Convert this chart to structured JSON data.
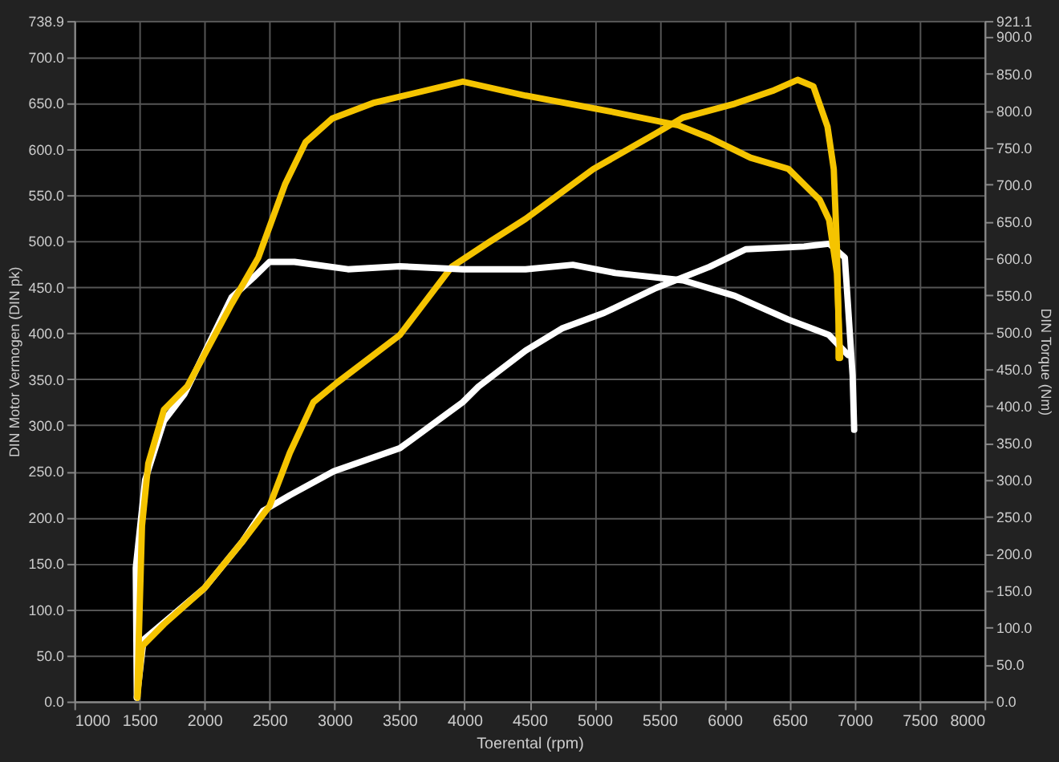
{
  "chart_data": {
    "type": "line",
    "xlabel": "Toerental (rpm)",
    "ylabel": "DIN Motor Vermogen (DIN pk)",
    "y2label": "DIN Torque (Nm)",
    "xlim": [
      1000,
      8000
    ],
    "xticks": [
      1000,
      1500,
      2000,
      2500,
      3000,
      3500,
      4000,
      4500,
      5000,
      5500,
      6000,
      6500,
      7000,
      7500,
      8000
    ],
    "ylim": [
      0,
      738.9
    ],
    "yticks": [
      {
        "value": 0,
        "label": "0.0"
      },
      {
        "value": 50,
        "label": "50.0"
      },
      {
        "value": 100,
        "label": "100.0"
      },
      {
        "value": 150,
        "label": "150.0"
      },
      {
        "value": 200,
        "label": "200.0"
      },
      {
        "value": 250,
        "label": "250.0"
      },
      {
        "value": 300,
        "label": "300.0"
      },
      {
        "value": 350,
        "label": "350.0"
      },
      {
        "value": 400,
        "label": "400.0"
      },
      {
        "value": 450,
        "label": "450.0"
      },
      {
        "value": 500,
        "label": "500.0"
      },
      {
        "value": 550,
        "label": "550.0"
      },
      {
        "value": 600,
        "label": "600.0"
      },
      {
        "value": 650,
        "label": "650.0"
      },
      {
        "value": 700,
        "label": "700.0"
      },
      738.9
    ],
    "y2lim": [
      0,
      921.1
    ],
    "y2ticks": [
      {
        "value": 0,
        "label": "0.0"
      },
      {
        "value": 50,
        "label": "50.0"
      },
      {
        "value": 100,
        "label": "100.0"
      },
      {
        "value": 150,
        "label": "150.0"
      },
      {
        "value": 200,
        "label": "200.0"
      },
      {
        "value": 250,
        "label": "250.0"
      },
      {
        "value": 300,
        "label": "300.0"
      },
      {
        "value": 350,
        "label": "350.0"
      },
      {
        "value": 400,
        "label": "400.0"
      },
      {
        "value": 450,
        "label": "450.0"
      },
      {
        "value": 500,
        "label": "500.0"
      },
      {
        "value": 550,
        "label": "550.0"
      },
      {
        "value": 600,
        "label": "600.0"
      },
      {
        "value": 650,
        "label": "650.0"
      },
      {
        "value": 700,
        "label": "700.0"
      },
      {
        "value": 750,
        "label": "750.0"
      },
      {
        "value": 800,
        "label": "800.0"
      },
      {
        "value": 850,
        "label": "850.0"
      },
      {
        "value": 900,
        "label": "900.0"
      },
      921.1
    ],
    "grid": true,
    "marker": "none",
    "line_style": "solid",
    "series": [
      {
        "color": "#ffffff",
        "x": [
          1480,
          1532,
          2000,
          2294,
          2451,
          2657,
          2995,
          3503,
          3987,
          4108,
          4470,
          4749,
          5075,
          5474,
          5885,
          6163,
          6611,
          6804,
          6925,
          6985,
          6997
        ],
        "values": [
          4,
          67,
          123,
          174,
          207,
          224,
          250,
          275,
          325,
          342,
          381,
          405,
          422,
          449,
          472,
          491,
          494,
          497,
          482,
          354,
          295
        ]
      },
      {
        "color": "#ffffff",
        "axis": "y2",
        "x": [
          1480,
          1472,
          1544,
          1689,
          1846,
          2209,
          2378,
          2500,
          2693,
          3104,
          3503,
          3987,
          4470,
          4833,
          5160,
          5680,
          6079,
          6490,
          6804,
          6949
        ],
        "values": [
          6,
          181,
          300,
          380,
          416,
          547,
          574,
          595,
          595,
          585,
          589,
          585,
          585,
          591,
          580,
          570,
          549,
          517,
          496,
          469
        ]
      },
      {
        "color": "#f5c400",
        "x": [
          1484,
          1520,
          1689,
          2000,
          2294,
          2500,
          2657,
          2838,
          3019,
          3503,
          3902,
          4192,
          4470,
          4990,
          5474,
          5680,
          6079,
          6369,
          6562,
          6683,
          6792,
          6840,
          6864,
          6877,
          6877
        ],
        "values": [
          4,
          60,
          84,
          123,
          174,
          212,
          270,
          325,
          346,
          398,
          472,
          499,
          524,
          578,
          617,
          634,
          649,
          663,
          675,
          668,
          624,
          578,
          494,
          410,
          373
        ]
      },
      {
        "color": "#f5c400",
        "axis": "y2",
        "x": [
          1484,
          1496,
          1520,
          1568,
          1689,
          1870,
          2209,
          2415,
          2620,
          2778,
          2983,
          3297,
          3987,
          4470,
          5111,
          5643,
          5885,
          6200,
          6490,
          6732,
          6804,
          6864,
          6889
        ],
        "values": [
          6,
          90,
          238,
          322,
          395,
          427,
          538,
          601,
          700,
          757,
          789,
          810,
          839,
          820,
          799,
          780,
          763,
          736,
          721,
          679,
          652,
          580,
          465
        ]
      }
    ]
  }
}
